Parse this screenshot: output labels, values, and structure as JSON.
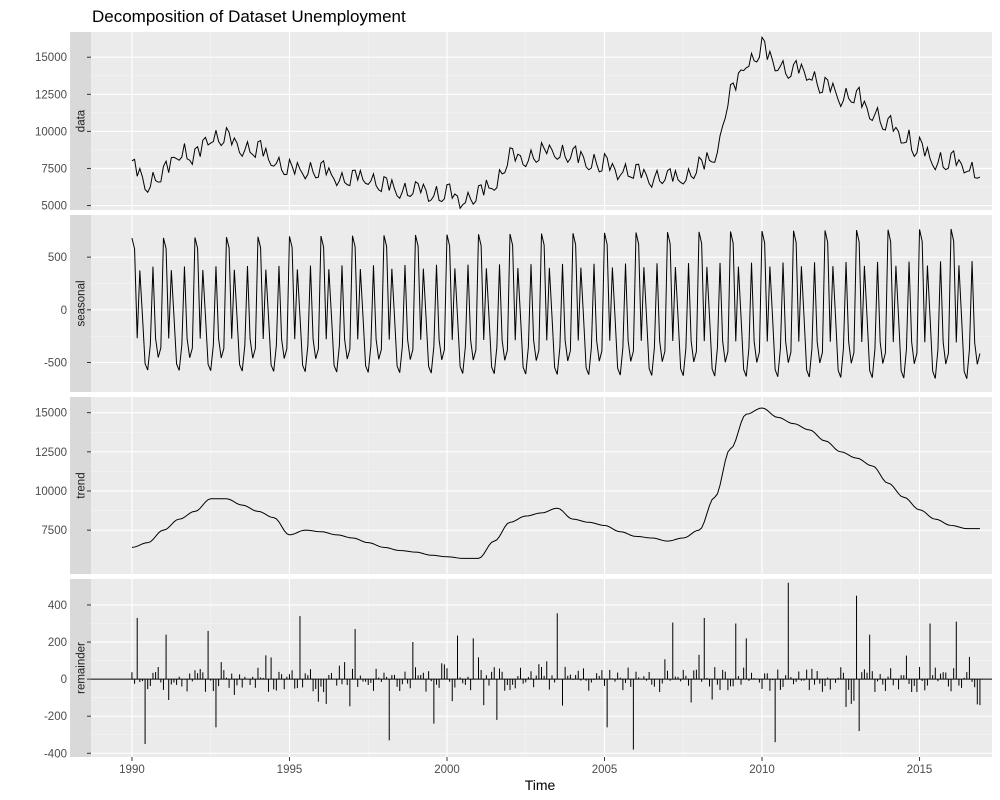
{
  "chart_data": {
    "type": "line",
    "title": "Decomposition of Dataset Unemployment",
    "xlabel": "Time",
    "xlim": [
      1988.7,
      2017.3
    ],
    "x_ticks": [
      1990,
      1995,
      2000,
      2005,
      2010,
      2015
    ],
    "x_tick_labels": [
      "1990",
      "1995",
      "2000",
      "2005",
      "2010",
      "2015"
    ],
    "background": "#ebebeb",
    "strip_color": "#d9d9d9",
    "grid": true,
    "panels": [
      {
        "name": "data",
        "kind": "line",
        "ylim": [
          4700,
          16700
        ],
        "y_ticks": [
          5000,
          7500,
          10000,
          12500,
          15000
        ],
        "y_tick_labels": [
          "5000",
          "7500",
          "10000",
          "12500",
          "15000"
        ],
        "keypoints": [
          [
            1990.0,
            7400
          ],
          [
            1990.5,
            6700
          ],
          [
            1991.0,
            7100
          ],
          [
            1991.5,
            8800
          ],
          [
            1992.0,
            8300
          ],
          [
            1992.5,
            9900
          ],
          [
            1993.0,
            9500
          ],
          [
            1993.5,
            9000
          ],
          [
            1994.0,
            8700
          ],
          [
            1994.5,
            8100
          ],
          [
            1995.0,
            7300
          ],
          [
            1995.5,
            7600
          ],
          [
            1996.0,
            7300
          ],
          [
            1996.5,
            7100
          ],
          [
            1997.0,
            6800
          ],
          [
            1997.5,
            6900
          ],
          [
            1998.0,
            6400
          ],
          [
            1998.5,
            6200
          ],
          [
            1999.0,
            6000
          ],
          [
            1999.5,
            5900
          ],
          [
            2000.0,
            5700
          ],
          [
            2000.5,
            5500
          ],
          [
            2001.0,
            5800
          ],
          [
            2001.5,
            6600
          ],
          [
            2002.0,
            8200
          ],
          [
            2002.5,
            8300
          ],
          [
            2003.0,
            8500
          ],
          [
            2003.5,
            8800
          ],
          [
            2004.0,
            8400
          ],
          [
            2004.5,
            8100
          ],
          [
            2005.0,
            7800
          ],
          [
            2005.5,
            7500
          ],
          [
            2006.0,
            7200
          ],
          [
            2006.5,
            7100
          ],
          [
            2007.0,
            6900
          ],
          [
            2007.5,
            7000
          ],
          [
            2008.0,
            7500
          ],
          [
            2008.5,
            8500
          ],
          [
            2009.0,
            12500
          ],
          [
            2009.5,
            14800
          ],
          [
            2010.0,
            15500
          ],
          [
            2010.5,
            14700
          ],
          [
            2011.0,
            14100
          ],
          [
            2011.5,
            14000
          ],
          [
            2012.0,
            13000
          ],
          [
            2012.5,
            12500
          ],
          [
            2013.0,
            12200
          ],
          [
            2013.5,
            11500
          ],
          [
            2014.0,
            10400
          ],
          [
            2014.5,
            9700
          ],
          [
            2015.0,
            8800
          ],
          [
            2015.5,
            8100
          ],
          [
            2016.0,
            7900
          ],
          [
            2016.5,
            7800
          ],
          [
            2016.9,
            7200
          ]
        ],
        "seasonal_amplitude": 650,
        "noise_amplitude": 180
      },
      {
        "name": "seasonal",
        "kind": "seasonal",
        "ylim": [
          -780,
          900
        ],
        "y_ticks": [
          -500,
          0,
          500
        ],
        "y_tick_labels": [
          "-500",
          "0",
          "500"
        ],
        "amplitude_start": 600,
        "amplitude_end": 690,
        "offset": 80,
        "x_start": 1990.0,
        "x_end": 2016.9
      },
      {
        "name": "trend",
        "kind": "line",
        "ylim": [
          4700,
          16000
        ],
        "y_ticks": [
          7500,
          10000,
          12500,
          15000
        ],
        "y_tick_labels": [
          "7500",
          "10000",
          "12500",
          "15000"
        ],
        "keypoints": [
          [
            1990.0,
            6400
          ],
          [
            1990.5,
            6700
          ],
          [
            1991.0,
            7500
          ],
          [
            1991.5,
            8200
          ],
          [
            1992.0,
            8700
          ],
          [
            1992.5,
            9500
          ],
          [
            1993.0,
            9500
          ],
          [
            1993.5,
            9100
          ],
          [
            1994.0,
            8700
          ],
          [
            1994.5,
            8300
          ],
          [
            1995.0,
            7200
          ],
          [
            1995.5,
            7500
          ],
          [
            1996.0,
            7400
          ],
          [
            1996.5,
            7200
          ],
          [
            1997.0,
            7000
          ],
          [
            1997.5,
            6700
          ],
          [
            1998.0,
            6400
          ],
          [
            1998.5,
            6200
          ],
          [
            1999.0,
            6100
          ],
          [
            1999.5,
            5900
          ],
          [
            2000.0,
            5800
          ],
          [
            2000.5,
            5700
          ],
          [
            2001.0,
            5700
          ],
          [
            2001.5,
            6800
          ],
          [
            2002.0,
            8000
          ],
          [
            2002.5,
            8400
          ],
          [
            2003.0,
            8600
          ],
          [
            2003.5,
            8900
          ],
          [
            2004.0,
            8200
          ],
          [
            2004.5,
            8000
          ],
          [
            2005.0,
            7800
          ],
          [
            2005.5,
            7400
          ],
          [
            2006.0,
            7100
          ],
          [
            2006.5,
            7000
          ],
          [
            2007.0,
            6800
          ],
          [
            2007.5,
            7000
          ],
          [
            2008.0,
            7500
          ],
          [
            2008.5,
            9600
          ],
          [
            2009.0,
            12700
          ],
          [
            2009.5,
            14900
          ],
          [
            2010.0,
            15300
          ],
          [
            2010.5,
            14700
          ],
          [
            2011.0,
            14300
          ],
          [
            2011.5,
            13900
          ],
          [
            2012.0,
            13200
          ],
          [
            2012.5,
            12500
          ],
          [
            2013.0,
            12100
          ],
          [
            2013.5,
            11600
          ],
          [
            2014.0,
            10500
          ],
          [
            2014.5,
            9600
          ],
          [
            2015.0,
            8800
          ],
          [
            2015.5,
            8200
          ],
          [
            2016.0,
            7800
          ],
          [
            2016.5,
            7600
          ],
          [
            2016.9,
            7600
          ]
        ]
      },
      {
        "name": "remainder",
        "kind": "bar",
        "ylim": [
          -420,
          540
        ],
        "y_ticks": [
          -400,
          -200,
          0,
          200,
          400
        ],
        "y_tick_labels": [
          "-400",
          "-200",
          "0",
          "200",
          "400"
        ],
        "x_start": 1990.0,
        "x_end": 2016.9,
        "noise_amplitude": 70,
        "spikes": [
          [
            1990.2,
            330
          ],
          [
            1990.4,
            -350
          ],
          [
            1991.1,
            240
          ],
          [
            1992.4,
            260
          ],
          [
            1992.7,
            -260
          ],
          [
            1995.3,
            340
          ],
          [
            1997.1,
            270
          ],
          [
            1998.2,
            -330
          ],
          [
            1998.9,
            200
          ],
          [
            1999.6,
            -240
          ],
          [
            2000.3,
            235
          ],
          [
            2000.8,
            220
          ],
          [
            2001.6,
            -220
          ],
          [
            2003.5,
            355
          ],
          [
            2005.1,
            -260
          ],
          [
            2005.9,
            -380
          ],
          [
            2007.2,
            305
          ],
          [
            2008.2,
            330
          ],
          [
            2009.2,
            300
          ],
          [
            2009.5,
            220
          ],
          [
            2010.4,
            -340
          ],
          [
            2010.8,
            520
          ],
          [
            2012.7,
            -150
          ],
          [
            2013.0,
            450
          ],
          [
            2013.1,
            -280
          ],
          [
            2013.4,
            240
          ],
          [
            2015.3,
            300
          ],
          [
            2016.2,
            310
          ],
          [
            2016.6,
            120
          ],
          [
            2016.9,
            -140
          ]
        ]
      }
    ]
  }
}
